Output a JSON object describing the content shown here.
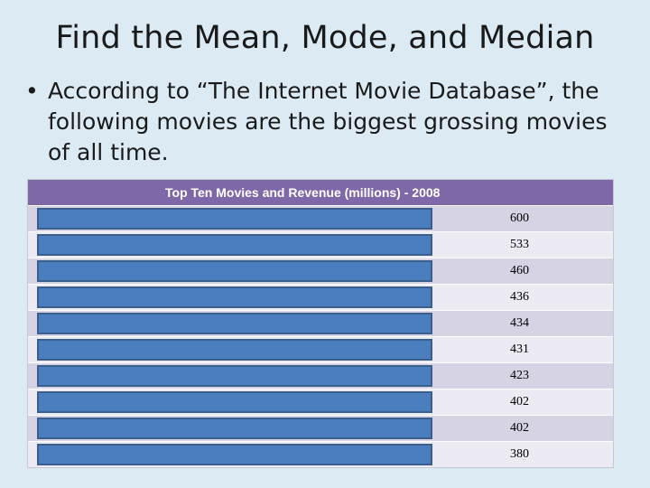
{
  "slide": {
    "title": "Find the Mean, Mode, and Median",
    "bullet_symbol": "•",
    "bullet_text": "According to “The Internet Movie Database”, the following movies are the biggest grossing movies of all time."
  },
  "table": {
    "header": "Top Ten Movies and Revenue (millions) - 2008",
    "revenues": [
      "600",
      "533",
      "460",
      "436",
      "434",
      "431",
      "423",
      "402",
      "402",
      "380"
    ]
  }
}
